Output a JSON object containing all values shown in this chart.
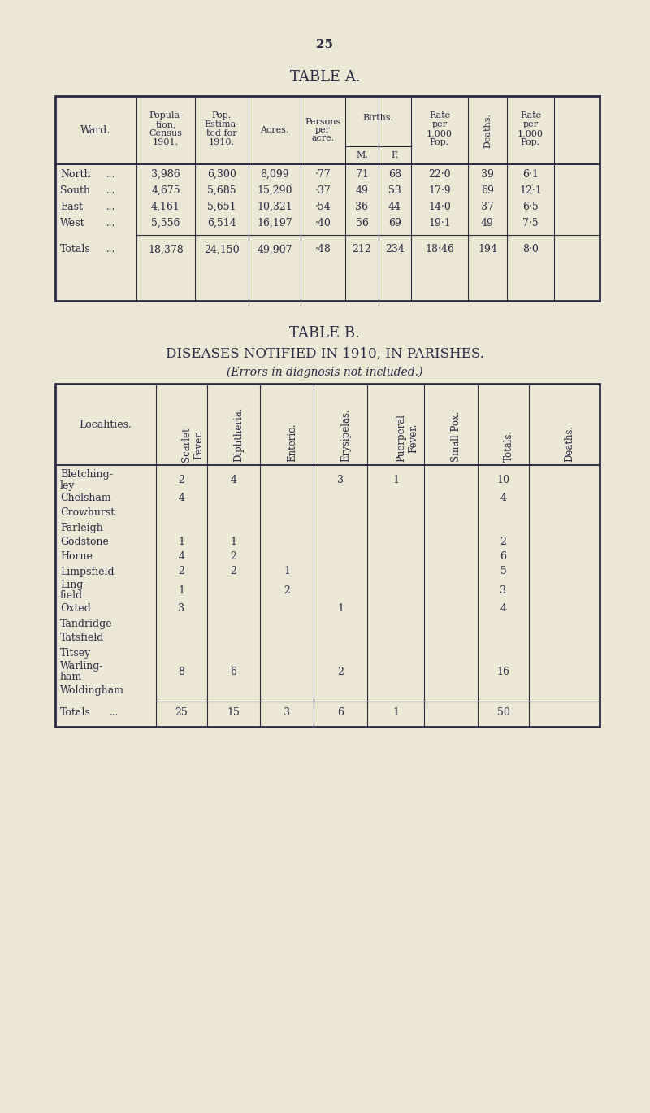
{
  "bg_color": "#ede8d5",
  "text_color": "#2a2a45",
  "page_number": "25",
  "table_a_title": "TABLE A.",
  "table_b_title": "TABLE B.",
  "table_b_subtitle": "DISEASES NOTIFIED IN 1910, IN PARISHES.",
  "table_b_note": "(Errors in diagnosis not included.)",
  "table_a_rows": [
    [
      "North",
      "...",
      "3,986",
      "6,300",
      "8,099",
      "·77",
      "71",
      "68",
      "22·0",
      "39",
      "6·1"
    ],
    [
      "South",
      "...",
      "4,675",
      "5,685",
      "15,290",
      "·37",
      "49",
      "53",
      "17·9",
      "69",
      "12·1"
    ],
    [
      "East",
      "...",
      "4,161",
      "5,651",
      "10,321",
      "·54",
      "36",
      "44",
      "14·0",
      "37",
      "6·5"
    ],
    [
      "West",
      "...",
      "5,556",
      "6,514",
      "16,197",
      "·40",
      "56",
      "69",
      "19·1",
      "49",
      "7·5"
    ]
  ],
  "table_a_totals": [
    "Totals",
    "...",
    "18,378",
    "24,150",
    "49,907",
    "·48",
    "212",
    "234",
    "18·46",
    "194",
    "8·0"
  ],
  "table_b_rows": [
    [
      "Bletching-",
      "ley",
      "2",
      "4",
      "",
      "3",
      "1",
      "",
      "10",
      ""
    ],
    [
      "Chelsham",
      "",
      "4",
      "",
      "",
      "",
      "",
      "",
      "4",
      ""
    ],
    [
      "Crowhurst",
      "",
      "",
      "",
      "",
      "",
      "",
      "",
      "",
      ""
    ],
    [
      "Farleigh",
      "",
      "",
      "",
      "",
      "",
      "",
      "",
      "",
      ""
    ],
    [
      "Godstone",
      "",
      "1",
      "1",
      "",
      "",
      "",
      "",
      "2",
      ""
    ],
    [
      "Horne",
      "",
      "4",
      "2",
      "",
      "",
      "",
      "",
      "6",
      ""
    ],
    [
      "Limpsfield",
      "",
      "2",
      "2",
      "1",
      "",
      "",
      "",
      "5",
      ""
    ],
    [
      "Ling-",
      "field",
      "1",
      "",
      "2",
      "",
      "",
      "",
      "3",
      ""
    ],
    [
      "Oxted",
      "",
      "3",
      "",
      "",
      "1",
      "",
      "",
      "4",
      ""
    ],
    [
      "Tandridge",
      "",
      "",
      "",
      "",
      "",
      "",
      "",
      "",
      ""
    ],
    [
      "Tatsfield",
      "",
      "",
      "",
      "",
      "",
      "",
      "",
      "",
      ""
    ],
    [
      "Titsey",
      "",
      "",
      "",
      "",
      "",
      "",
      "",
      "",
      ""
    ],
    [
      "Warling-",
      "ham",
      "8",
      "6",
      "",
      "2",
      "",
      "",
      "16",
      ""
    ],
    [
      "Woldingham",
      "",
      "",
      "",
      "",
      "",
      "",
      "",
      "",
      ""
    ]
  ],
  "table_b_totals": [
    "Totals",
    "...",
    "25",
    "15",
    "3",
    "6",
    "1",
    "",
    "50",
    ""
  ]
}
